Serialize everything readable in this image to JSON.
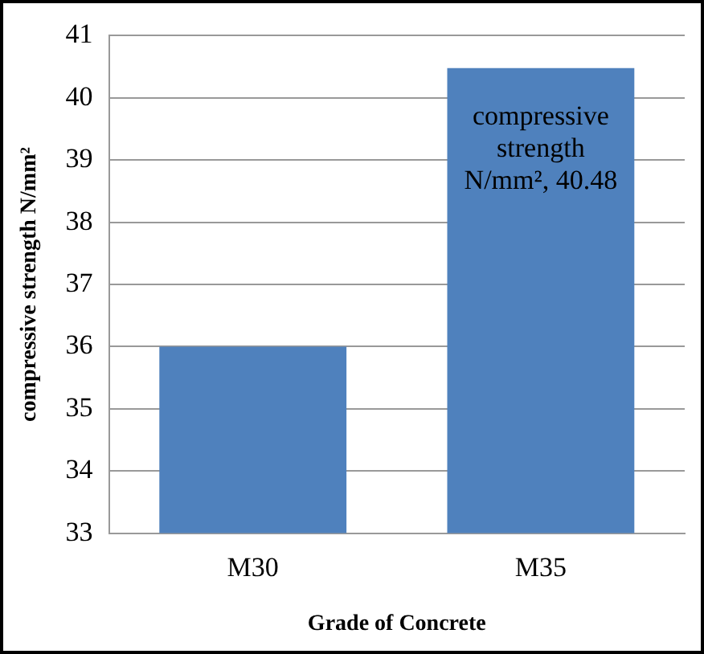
{
  "chart_data": {
    "type": "bar",
    "xlabel": "Grade of Concrete",
    "ylabel": "compressive strength N/mm²",
    "categories": [
      "M30",
      "M35"
    ],
    "values": [
      36,
      40.48
    ],
    "color": "#4f81bd",
    "value_labels": [
      null,
      "compressive strength N/mm², 40.48"
    ],
    "ylim": [
      33,
      41
    ],
    "yticks": [
      33,
      34,
      35,
      36,
      37,
      38,
      39,
      40,
      41
    ],
    "grid": "y"
  }
}
